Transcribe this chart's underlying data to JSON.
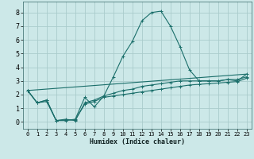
{
  "title": "",
  "xlabel": "Humidex (Indice chaleur)",
  "background_color": "#cce8e8",
  "grid_color": "#aacccc",
  "line_color": "#1a6e6a",
  "xlim": [
    -0.5,
    23.5
  ],
  "ylim": [
    -0.5,
    8.8
  ],
  "xticks": [
    0,
    1,
    2,
    3,
    4,
    5,
    6,
    7,
    8,
    9,
    10,
    11,
    12,
    13,
    14,
    15,
    16,
    17,
    18,
    19,
    20,
    21,
    22,
    23
  ],
  "yticks": [
    0,
    1,
    2,
    3,
    4,
    5,
    6,
    7,
    8
  ],
  "lines": [
    {
      "x": [
        0,
        1,
        2,
        3,
        4,
        5,
        6,
        7,
        8,
        9,
        10,
        11,
        12,
        13,
        14,
        15,
        16,
        17,
        18,
        19,
        20,
        21,
        22,
        23
      ],
      "y": [
        2.3,
        1.4,
        1.6,
        0.1,
        0.1,
        0.2,
        1.8,
        1.1,
        1.9,
        3.3,
        4.8,
        5.9,
        7.4,
        8.0,
        8.1,
        7.0,
        5.5,
        3.8,
        3.0,
        3.0,
        3.0,
        3.1,
        3.0,
        3.5
      ],
      "marker": true
    },
    {
      "x": [
        0,
        1,
        2,
        3,
        4,
        5,
        6,
        7,
        8,
        9,
        10,
        11,
        12,
        13,
        14,
        15,
        16,
        17,
        18,
        19,
        20,
        21,
        22,
        23
      ],
      "y": [
        2.3,
        1.4,
        1.6,
        0.1,
        0.2,
        0.1,
        1.4,
        1.6,
        1.9,
        2.1,
        2.3,
        2.4,
        2.6,
        2.7,
        2.8,
        2.9,
        3.0,
        3.0,
        3.0,
        3.0,
        3.0,
        3.1,
        3.1,
        3.3
      ],
      "marker": true
    },
    {
      "x": [
        0,
        1,
        2,
        3,
        4,
        5,
        6,
        7,
        8,
        9,
        10,
        11,
        12,
        13,
        14,
        15,
        16,
        17,
        18,
        19,
        20,
        21,
        22,
        23
      ],
      "y": [
        2.3,
        1.4,
        1.5,
        0.1,
        0.15,
        0.15,
        1.3,
        1.5,
        1.8,
        1.9,
        2.0,
        2.1,
        2.2,
        2.3,
        2.4,
        2.5,
        2.6,
        2.7,
        2.75,
        2.8,
        2.85,
        2.9,
        2.95,
        3.2
      ],
      "marker": true
    },
    {
      "x": [
        0,
        23
      ],
      "y": [
        2.3,
        3.5
      ],
      "marker": false
    }
  ]
}
